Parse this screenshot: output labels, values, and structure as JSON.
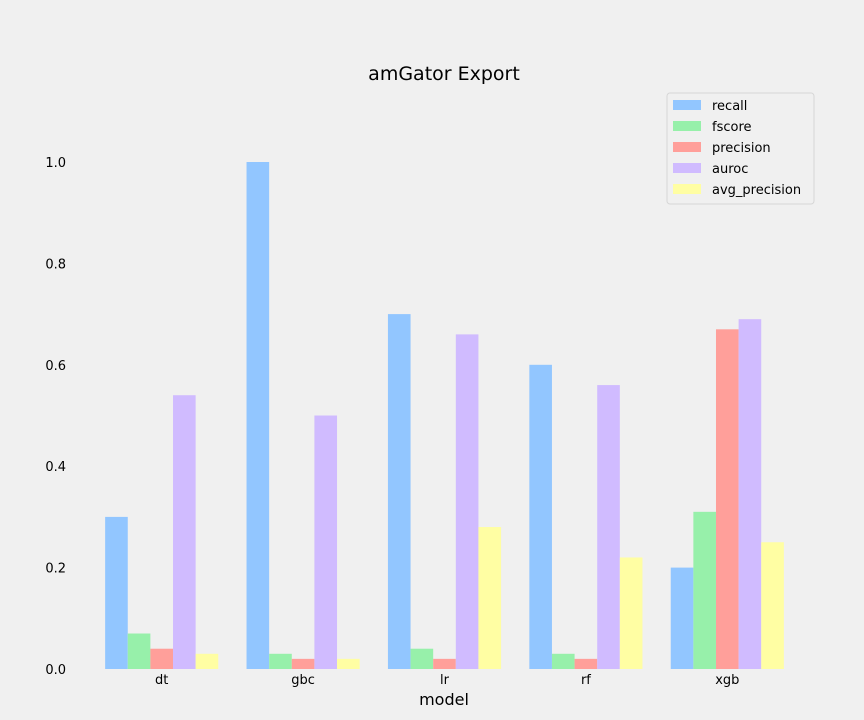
{
  "chart_data": {
    "type": "bar",
    "title": "amGator Export",
    "xlabel": "model",
    "ylabel": "",
    "categories": [
      "dt",
      "gbc",
      "lr",
      "rf",
      "xgb"
    ],
    "ylim": [
      0,
      1.1
    ],
    "yticks": [
      "0.0",
      "0.2",
      "0.4",
      "0.6",
      "0.8",
      "1.0"
    ],
    "grid": false,
    "legend_position": "top-right",
    "series": [
      {
        "name": "recall",
        "color": "#92c6ff",
        "values": [
          0.3,
          1.0,
          0.7,
          0.6,
          0.2
        ]
      },
      {
        "name": "fscore",
        "color": "#97f0aa",
        "values": [
          0.07,
          0.03,
          0.04,
          0.03,
          0.31
        ]
      },
      {
        "name": "precision",
        "color": "#ff9f9a",
        "values": [
          0.04,
          0.02,
          0.02,
          0.02,
          0.67
        ]
      },
      {
        "name": "auroc",
        "color": "#d0bbff",
        "values": [
          0.54,
          0.5,
          0.66,
          0.56,
          0.69
        ]
      },
      {
        "name": "avg_precision",
        "color": "#fffea3",
        "values": [
          0.03,
          0.02,
          0.28,
          0.22,
          0.25
        ]
      }
    ]
  }
}
